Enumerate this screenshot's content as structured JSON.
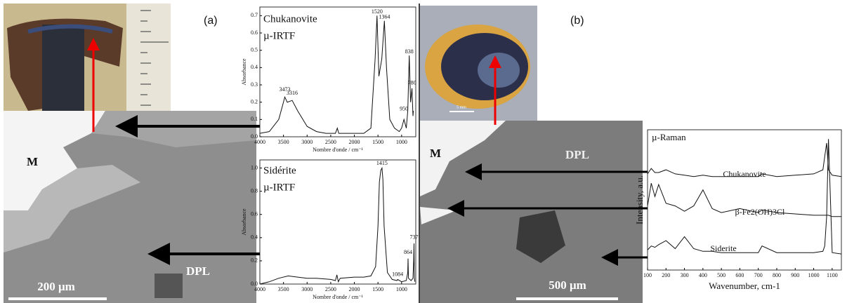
{
  "figure": {
    "panels": [
      {
        "label": "(a)",
        "image_labels": {
          "matrix": "M",
          "layer": "DPL",
          "scale": "200 μm"
        }
      },
      {
        "label": "(b)",
        "image_labels": {
          "matrix": "M",
          "layer": "DPL",
          "scale": "500 μm",
          "photo_scale": "5 mm"
        }
      }
    ]
  },
  "chart_data": [
    {
      "type": "line",
      "title": "Chukanovite",
      "subtitle": "µ-IRTF",
      "x_label": "Nombre d'onde / cm⁻¹",
      "y_label": "Absorbance",
      "xlim": [
        4000,
        700
      ],
      "xticks": [
        4000,
        3500,
        3000,
        2500,
        2000,
        1500,
        1000
      ],
      "ylim": [
        0,
        0.75
      ],
      "yticks": [
        {
          "value": 0,
          "label": "0.0"
        },
        0.1,
        0.2,
        0.3,
        0.4,
        0.5,
        0.6,
        0.7
      ],
      "x": [
        4000,
        3800,
        3600,
        3500,
        3473,
        3420,
        3316,
        3200,
        3000,
        2800,
        2600,
        2400,
        2360,
        2330,
        2200,
        2000,
        1800,
        1650,
        1560,
        1520,
        1480,
        1420,
        1364,
        1320,
        1250,
        1150,
        1050,
        1000,
        950,
        900,
        870,
        838,
        810,
        780,
        760,
        750
      ],
      "values": [
        0.02,
        0.03,
        0.1,
        0.2,
        0.23,
        0.2,
        0.21,
        0.15,
        0.06,
        0.03,
        0.02,
        0.02,
        0.05,
        0.02,
        0.02,
        0.02,
        0.02,
        0.05,
        0.45,
        0.7,
        0.35,
        0.45,
        0.67,
        0.4,
        0.1,
        0.05,
        0.03,
        0.05,
        0.1,
        0.05,
        0.15,
        0.47,
        0.2,
        0.28,
        0.12,
        0.15
      ],
      "color": "#111111",
      "peaks": [
        {
          "label": "3473",
          "x": 3473,
          "y": 0.27
        },
        {
          "label": "3316",
          "x": 3316,
          "y": 0.25
        },
        {
          "label": "1520",
          "x": 1520,
          "y": 0.72
        },
        {
          "label": "1364",
          "x": 1364,
          "y": 0.69
        },
        {
          "label": "950",
          "x": 950,
          "y": 0.16
        },
        {
          "label": "838",
          "x": 838,
          "y": 0.49
        },
        {
          "label": "780",
          "x": 780,
          "y": 0.31
        }
      ]
    },
    {
      "type": "line",
      "title": "Sidérite",
      "subtitle": "µ-IRTF",
      "x_label": "Nombre d'onde / cm⁻¹",
      "y_label": "Absorbance",
      "xlim": [
        4000,
        700
      ],
      "xticks": [
        4000,
        3500,
        3000,
        2500,
        2000,
        1500,
        1000
      ],
      "ylim": [
        0,
        1.07
      ],
      "yticks": [
        {
          "value": 0,
          "label": "0.0"
        },
        0.2,
        0.4,
        0.6,
        0.8,
        {
          "value": 1,
          "label": "1.0"
        }
      ],
      "x": [
        4000,
        3800,
        3600,
        3400,
        3200,
        3000,
        2800,
        2500,
        2400,
        2370,
        2340,
        2300,
        2000,
        1800,
        1650,
        1550,
        1500,
        1470,
        1440,
        1415,
        1395,
        1370,
        1300,
        1200,
        1100,
        1084,
        1000,
        900,
        870,
        864,
        855,
        800,
        760,
        745,
        737,
        730,
        720
      ],
      "values": [
        0.0,
        0.02,
        0.05,
        0.07,
        0.06,
        0.05,
        0.05,
        0.04,
        0.03,
        0.08,
        0.02,
        0.05,
        0.06,
        0.06,
        0.07,
        0.15,
        0.5,
        0.88,
        0.98,
        1.0,
        0.9,
        0.5,
        0.1,
        0.04,
        0.03,
        0.04,
        0.02,
        0.03,
        0.1,
        0.22,
        0.05,
        0.03,
        0.05,
        0.2,
        0.35,
        0.05,
        0.02
      ],
      "color": "#111111",
      "peaks": [
        {
          "label": "1415",
          "x": 1415,
          "y": 1.04
        },
        {
          "label": "1084",
          "x": 1084,
          "y": 0.08
        },
        {
          "label": "864",
          "x": 864,
          "y": 0.27
        },
        {
          "label": "737",
          "x": 737,
          "y": 0.4
        }
      ]
    },
    {
      "type": "line",
      "title": "µ-Raman",
      "x_label": "Wavenumber, cm-1",
      "y_label": "Intensity, a.u.",
      "xlim": [
        100,
        1150
      ],
      "xticks": [
        100,
        200,
        300,
        400,
        500,
        600,
        700,
        800,
        900,
        1000,
        1100
      ],
      "ylim": [
        0,
        10.5
      ],
      "x": [
        100,
        120,
        140,
        160,
        200,
        250,
        300,
        350,
        400,
        450,
        500,
        600,
        700,
        720,
        800,
        900,
        1000,
        1050,
        1060,
        1070,
        1080,
        1100,
        1150
      ],
      "series": [
        {
          "name": "Chukanovite",
          "color": "#111111",
          "values": [
            7.2,
            7.6,
            7.3,
            7.3,
            7.5,
            7.2,
            7.1,
            7.0,
            7.1,
            7.0,
            7.0,
            7.0,
            7.0,
            7.2,
            7.0,
            7.1,
            7.2,
            7.5,
            8.5,
            9.5,
            7.5,
            7.1,
            7.0
          ]
        },
        {
          "name": "β-Fe2(OH)3Cl",
          "color": "#111111",
          "values": [
            4.8,
            6.5,
            5.5,
            6.4,
            5.0,
            4.8,
            4.4,
            4.8,
            6.0,
            4.6,
            4.3,
            4.6,
            4.3,
            4.5,
            4.3,
            4.2,
            4.1,
            4.1,
            4.1,
            4.1,
            4.1,
            4.0,
            4.0
          ]
        },
        {
          "name": "Siderite",
          "color": "#111111",
          "values": [
            1.5,
            1.8,
            1.7,
            1.9,
            2.2,
            1.6,
            2.5,
            1.6,
            1.4,
            1.4,
            1.3,
            1.3,
            1.3,
            1.8,
            1.3,
            1.3,
            1.3,
            1.4,
            1.8,
            4.0,
            9.8,
            1.3,
            1.2
          ]
        }
      ]
    }
  ]
}
